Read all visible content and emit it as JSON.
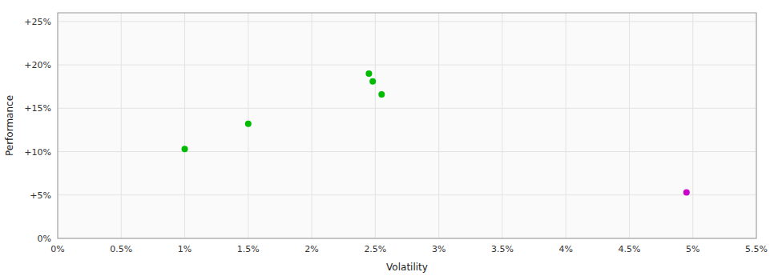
{
  "chart_data": {
    "type": "scatter",
    "xlabel": "Volatility",
    "ylabel": "Performance",
    "xlim": [
      0.0,
      0.055
    ],
    "ylim": [
      0.0,
      0.26
    ],
    "xticks": [
      {
        "value": 0.0,
        "label": "0%"
      },
      {
        "value": 0.005,
        "label": "0.5%"
      },
      {
        "value": 0.01,
        "label": "1%"
      },
      {
        "value": 0.015,
        "label": "1.5%"
      },
      {
        "value": 0.02,
        "label": "2%"
      },
      {
        "value": 0.025,
        "label": "2.5%"
      },
      {
        "value": 0.03,
        "label": "3%"
      },
      {
        "value": 0.035,
        "label": "3.5%"
      },
      {
        "value": 0.04,
        "label": "4%"
      },
      {
        "value": 0.045,
        "label": "4.5%"
      },
      {
        "value": 0.05,
        "label": "5%"
      },
      {
        "value": 0.055,
        "label": "5.5%"
      }
    ],
    "yticks": [
      {
        "value": 0.0,
        "label": "0%"
      },
      {
        "value": 0.05,
        "label": "+5%"
      },
      {
        "value": 0.1,
        "label": "+10%"
      },
      {
        "value": 0.15,
        "label": "+15%"
      },
      {
        "value": 0.2,
        "label": "+20%"
      },
      {
        "value": 0.25,
        "label": "+25%"
      }
    ],
    "grid": true,
    "series": [
      {
        "color": "#00bb00",
        "x": [
          0.01,
          0.015,
          0.0245,
          0.0248,
          0.0255
        ],
        "values": [
          0.103,
          0.132,
          0.19,
          0.181,
          0.166
        ]
      },
      {
        "color": "#cc00cc",
        "x": [
          0.0495
        ],
        "values": [
          0.053
        ]
      }
    ]
  }
}
